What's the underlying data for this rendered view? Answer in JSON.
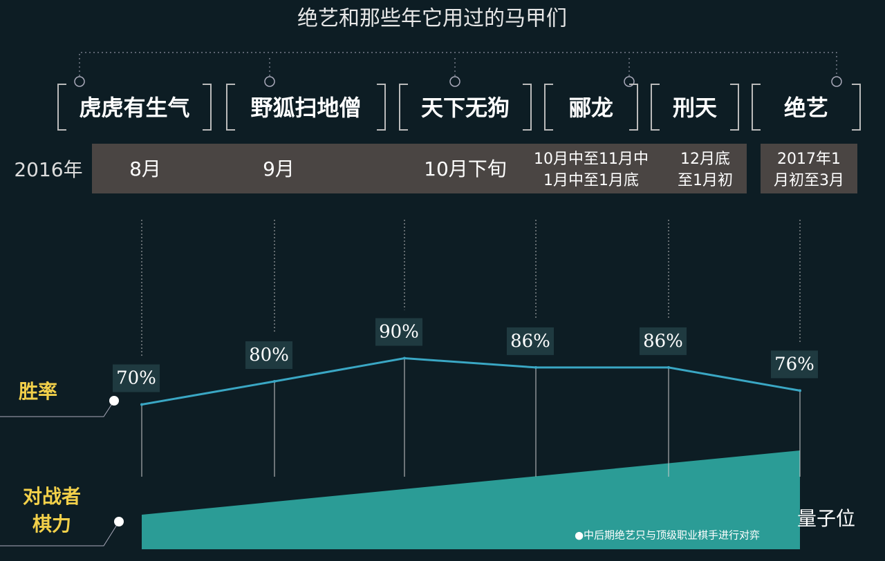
{
  "chart_data": {
    "type": "line",
    "title": "绝艺和那些年它用过的马甲们",
    "year_label": "2016年",
    "categories": [
      "虎虎有生气",
      "野狐扫地僧",
      "天下无狗",
      "郦龙",
      "刑天",
      "绝艺"
    ],
    "periods": [
      [
        "8月"
      ],
      [
        "9月"
      ],
      [
        "10月下旬"
      ],
      [
        "10月中至11月中",
        "1月中至1月底"
      ],
      [
        "12月底",
        "至1月初"
      ],
      [
        "2017年1",
        "月初至3月"
      ]
    ],
    "series": [
      {
        "name": "胜率",
        "color": "#3aa7c4",
        "values": [
          70,
          80,
          90,
          86,
          86,
          76
        ],
        "value_labels": [
          "70%",
          "80%",
          "90%",
          "86%",
          "86%",
          "76%"
        ]
      }
    ],
    "area_label": [
      "对战者",
      "棋力"
    ],
    "area_color": "#2b9c96",
    "note": "●中后期绝艺只与顶级职业棋手进行对弈",
    "watermark": "量子位"
  }
}
